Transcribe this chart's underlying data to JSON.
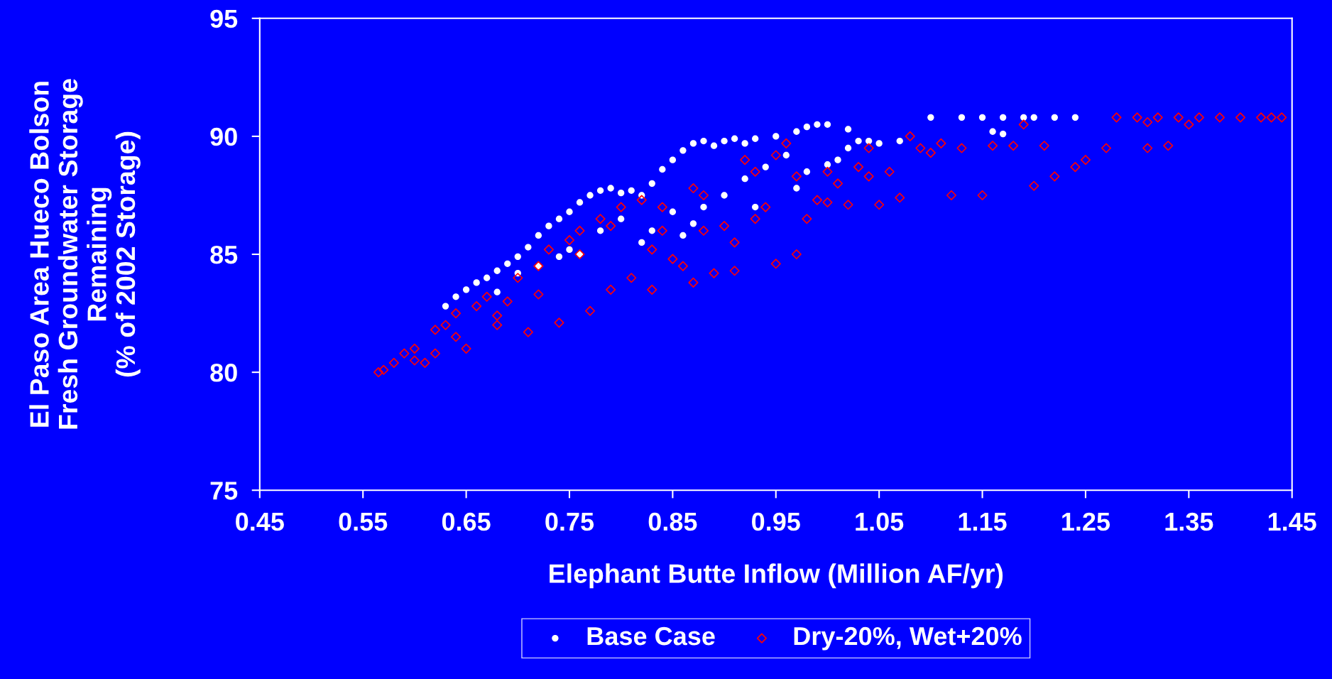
{
  "chart_data": {
    "type": "scatter",
    "xlabel": "Elephant Butte Inflow (Million AF/yr)",
    "ylabel": "El Paso Area Hueco Bolson\nFresh Groundwater Storage\nRemaining\n(% of 2002 Storage)",
    "xlim": [
      0.45,
      1.45
    ],
    "xticks": [
      0.45,
      0.55,
      0.65,
      0.75,
      0.85,
      0.95,
      1.05,
      1.15,
      1.25,
      1.35,
      1.45
    ],
    "ylim": [
      75,
      95
    ],
    "yticks": [
      75,
      80,
      85,
      90,
      95
    ],
    "grid": false,
    "legend": "bottom",
    "series": [
      {
        "name": "Base Case",
        "color": "#ffffff",
        "marker": "circle",
        "x": [
          0.63,
          0.64,
          0.65,
          0.66,
          0.67,
          0.68,
          0.69,
          0.7,
          0.71,
          0.72,
          0.73,
          0.74,
          0.75,
          0.76,
          0.77,
          0.78,
          0.79,
          0.8,
          0.81,
          0.82,
          0.83,
          0.84,
          0.85,
          0.86,
          0.87,
          0.88,
          0.89,
          0.9,
          0.91,
          0.92,
          0.93,
          0.95,
          0.97,
          0.98,
          0.99,
          1.0,
          1.02,
          1.03,
          1.05,
          1.07,
          1.1,
          1.13,
          1.15,
          1.17,
          1.19,
          1.2,
          1.22,
          1.24,
          1.17,
          1.16,
          0.68,
          0.72,
          0.75,
          0.78,
          0.8,
          0.83,
          0.85,
          0.86,
          0.88,
          0.9,
          0.92,
          0.94,
          0.96,
          0.98,
          1.0,
          1.02,
          1.04,
          0.76,
          0.82,
          0.87,
          0.93,
          0.97,
          1.01,
          0.7,
          0.74
        ],
        "values": [
          82.8,
          83.2,
          83.5,
          83.8,
          84.0,
          84.3,
          84.6,
          84.9,
          85.3,
          85.8,
          86.2,
          86.5,
          86.8,
          87.2,
          87.5,
          87.7,
          87.8,
          87.6,
          87.7,
          87.5,
          88.0,
          88.6,
          89.0,
          89.4,
          89.7,
          89.8,
          89.6,
          89.8,
          89.9,
          89.7,
          89.9,
          90.0,
          90.2,
          90.4,
          90.5,
          90.5,
          90.3,
          89.8,
          89.7,
          89.8,
          90.8,
          90.8,
          90.8,
          90.8,
          90.8,
          90.8,
          90.8,
          90.8,
          90.1,
          90.2,
          83.4,
          84.5,
          85.2,
          86.0,
          86.5,
          86.0,
          86.8,
          85.8,
          87.0,
          87.5,
          88.2,
          88.7,
          89.2,
          88.5,
          88.8,
          89.5,
          89.8,
          85.0,
          85.5,
          86.3,
          87.0,
          87.8,
          89.0,
          84.2,
          84.9
        ]
      },
      {
        "name": "Dry-20%, Wet+20%",
        "color": "#ff0000",
        "marker": "diamond",
        "x": [
          0.565,
          0.57,
          0.58,
          0.59,
          0.6,
          0.61,
          0.62,
          0.63,
          0.64,
          0.65,
          0.66,
          0.67,
          0.68,
          0.69,
          0.7,
          0.71,
          0.72,
          0.73,
          0.74,
          0.75,
          0.76,
          0.77,
          0.78,
          0.79,
          0.8,
          0.81,
          0.82,
          0.83,
          0.84,
          0.85,
          0.86,
          0.87,
          0.88,
          0.89,
          0.9,
          0.91,
          0.92,
          0.93,
          0.94,
          0.95,
          0.96,
          0.97,
          0.98,
          0.99,
          1.0,
          1.01,
          1.02,
          1.03,
          1.04,
          1.05,
          1.06,
          1.07,
          1.08,
          1.09,
          1.1,
          1.11,
          1.12,
          1.13,
          1.15,
          1.16,
          1.18,
          1.2,
          1.21,
          1.22,
          1.24,
          1.25,
          1.27,
          1.28,
          1.3,
          1.31,
          1.32,
          1.33,
          1.34,
          1.35,
          1.36,
          1.38,
          1.4,
          1.42,
          1.43,
          1.44,
          1.19,
          1.31,
          0.95,
          0.93,
          0.87,
          0.84,
          0.79,
          0.76,
          0.72,
          0.68,
          0.64,
          0.62,
          0.6,
          0.83,
          0.88,
          0.91,
          1.0,
          1.04,
          0.97
        ],
        "values": [
          80.0,
          80.1,
          80.4,
          80.8,
          81.0,
          80.4,
          81.8,
          82.0,
          82.5,
          81.0,
          82.8,
          83.2,
          82.0,
          83.0,
          84.0,
          81.7,
          84.5,
          85.2,
          82.1,
          85.6,
          86.0,
          82.6,
          86.5,
          83.5,
          87.0,
          84.0,
          87.3,
          83.5,
          86.0,
          84.8,
          84.5,
          83.8,
          87.5,
          84.2,
          86.2,
          84.3,
          89.0,
          86.5,
          87.0,
          84.6,
          89.7,
          85.0,
          86.5,
          87.3,
          87.2,
          88.0,
          87.1,
          88.7,
          88.3,
          87.1,
          88.5,
          87.4,
          90.0,
          89.5,
          89.3,
          89.7,
          87.5,
          89.5,
          87.5,
          89.6,
          89.6,
          87.9,
          89.6,
          88.3,
          88.7,
          89.0,
          89.5,
          90.8,
          90.8,
          89.5,
          90.8,
          89.6,
          90.8,
          90.5,
          90.8,
          90.8,
          90.8,
          90.8,
          90.8,
          90.8,
          90.5,
          90.6,
          89.2,
          88.5,
          87.8,
          87.0,
          86.2,
          85.0,
          83.3,
          82.4,
          81.5,
          80.8,
          80.5,
          85.2,
          86.0,
          85.5,
          88.5,
          89.5,
          88.3
        ]
      }
    ]
  }
}
